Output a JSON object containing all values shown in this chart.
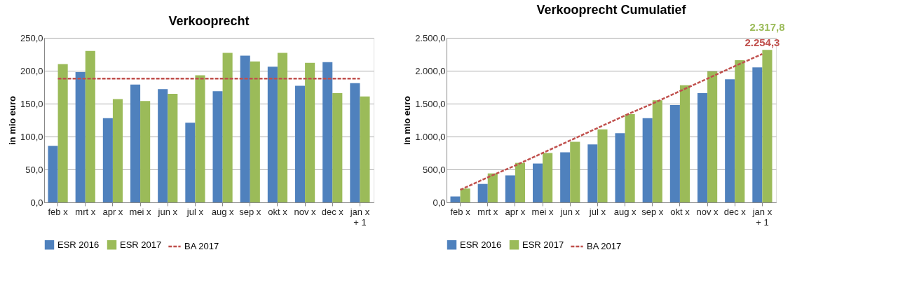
{
  "chart_data": [
    {
      "type": "bar",
      "title": "Verkooprecht",
      "ylabel": "in mio euro",
      "categories": [
        "feb x",
        "mrt x",
        "apr x",
        "mei x",
        "jun x",
        "jul x",
        "aug x",
        "sep x",
        "okt x",
        "nov x",
        "dec x",
        "jan x + 1"
      ],
      "ylim": [
        0,
        250
      ],
      "yticks": [
        {
          "value": 0,
          "label": "0,0"
        },
        {
          "value": 50,
          "label": "50,0"
        },
        {
          "value": 100,
          "label": "100,0"
        },
        {
          "value": 150,
          "label": "150,0"
        },
        {
          "value": 200,
          "label": "200,0"
        },
        {
          "value": 250,
          "label": "250,0"
        }
      ],
      "grid": "y",
      "legend": "bottom",
      "series": [
        {
          "name": "ESR 2016",
          "color": "#4f81bd",
          "values": [
            86,
            198,
            128,
            179,
            172,
            121,
            169,
            223,
            206,
            177,
            213,
            181
          ]
        },
        {
          "name": "ESR 2017",
          "color": "#9bbb59",
          "values": [
            210,
            230,
            157,
            154,
            165,
            193,
            227,
            214,
            227,
            212,
            166,
            161
          ]
        },
        {
          "name": "BA 2017",
          "color": "#c0504d",
          "type": "line",
          "line_style": "dashed",
          "marker": "none",
          "values": [
            188,
            188,
            188,
            188,
            188,
            188,
            188,
            188,
            188,
            188,
            188,
            188
          ]
        }
      ]
    },
    {
      "type": "bar",
      "title": "Verkooprecht Cumulatief",
      "ylabel": "in mio euro",
      "categories": [
        "feb x",
        "mrt x",
        "apr x",
        "mei x",
        "jun x",
        "jul x",
        "aug x",
        "sep x",
        "okt x",
        "nov x",
        "dec x",
        "jan x + 1"
      ],
      "ylim": [
        0,
        2500
      ],
      "yticks": [
        {
          "value": 0,
          "label": "0,0"
        },
        {
          "value": 500,
          "label": "500,0"
        },
        {
          "value": 1000,
          "label": "1.000,0"
        },
        {
          "value": 1500,
          "label": "1.500,0"
        },
        {
          "value": 2000,
          "label": "2.000,0"
        },
        {
          "value": 2500,
          "label": "2.500,0"
        }
      ],
      "grid": "y",
      "legend": "bottom",
      "series": [
        {
          "name": "ESR 2016",
          "color": "#4f81bd",
          "values": [
            90,
            280,
            410,
            590,
            760,
            880,
            1050,
            1280,
            1480,
            1660,
            1870,
            2050
          ]
        },
        {
          "name": "ESR 2017",
          "color": "#9bbb59",
          "values": [
            210,
            440,
            600,
            750,
            920,
            1110,
            1340,
            1550,
            1780,
            1990,
            2160,
            2317.8
          ],
          "value_labels": [
            null,
            null,
            null,
            null,
            null,
            null,
            null,
            null,
            null,
            null,
            null,
            "2.317,8"
          ]
        },
        {
          "name": "BA 2017",
          "color": "#c0504d",
          "type": "line",
          "line_style": "dashed",
          "marker": "none",
          "values": [
            190,
            380,
            560,
            750,
            940,
            1130,
            1320,
            1500,
            1690,
            1880,
            2070,
            2254.3
          ],
          "value_labels": [
            null,
            null,
            null,
            null,
            null,
            null,
            null,
            null,
            null,
            null,
            null,
            "2.254,3"
          ]
        }
      ]
    }
  ]
}
